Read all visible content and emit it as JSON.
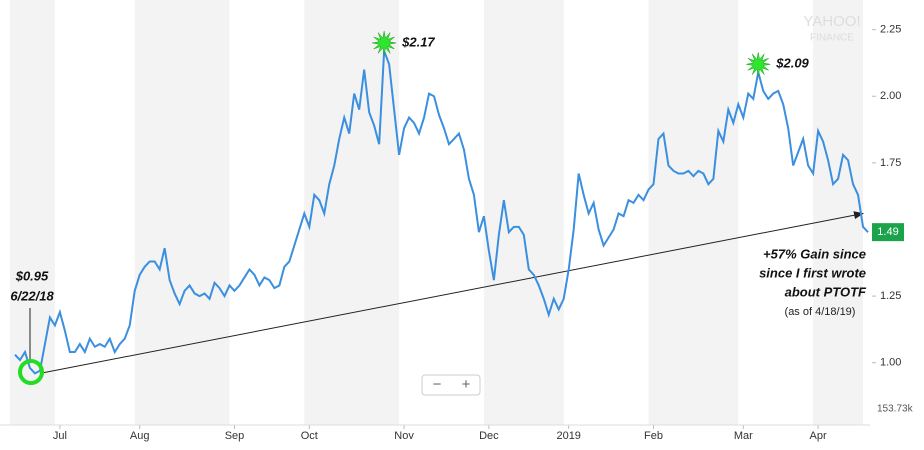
{
  "chart_data": {
    "type": "line",
    "watermark": [
      "YAHOO!",
      "FINANCE"
    ],
    "series": [
      {
        "name": "PTOTF",
        "color": "#3b8fe0",
        "values": [
          1.03,
          1.01,
          1.04,
          0.98,
          0.96,
          0.97,
          1.07,
          1.17,
          1.14,
          1.19,
          1.12,
          1.04,
          1.04,
          1.07,
          1.04,
          1.09,
          1.06,
          1.07,
          1.06,
          1.09,
          1.04,
          1.07,
          1.09,
          1.14,
          1.27,
          1.33,
          1.36,
          1.38,
          1.38,
          1.35,
          1.43,
          1.31,
          1.26,
          1.22,
          1.27,
          1.29,
          1.26,
          1.25,
          1.26,
          1.24,
          1.3,
          1.28,
          1.25,
          1.29,
          1.27,
          1.29,
          1.32,
          1.35,
          1.33,
          1.29,
          1.32,
          1.31,
          1.28,
          1.29,
          1.36,
          1.38,
          1.44,
          1.5,
          1.56,
          1.51,
          1.63,
          1.61,
          1.56,
          1.67,
          1.74,
          1.84,
          1.92,
          1.86,
          2.01,
          1.95,
          2.1,
          1.94,
          1.89,
          1.82,
          2.17,
          2.12,
          1.95,
          1.78,
          1.88,
          1.92,
          1.9,
          1.86,
          1.92,
          2.01,
          2.0,
          1.93,
          1.88,
          1.82,
          1.84,
          1.86,
          1.8,
          1.69,
          1.63,
          1.49,
          1.55,
          1.42,
          1.31,
          1.48,
          1.61,
          1.49,
          1.51,
          1.51,
          1.48,
          1.35,
          1.33,
          1.29,
          1.24,
          1.18,
          1.24,
          1.2,
          1.24,
          1.35,
          1.5,
          1.71,
          1.63,
          1.56,
          1.6,
          1.5,
          1.44,
          1.47,
          1.5,
          1.56,
          1.55,
          1.61,
          1.6,
          1.63,
          1.61,
          1.65,
          1.67,
          1.84,
          1.86,
          1.74,
          1.72,
          1.71,
          1.71,
          1.72,
          1.7,
          1.72,
          1.71,
          1.67,
          1.69,
          1.87,
          1.83,
          1.95,
          1.9,
          1.97,
          1.92,
          2.01,
          1.99,
          2.09,
          2.02,
          1.99,
          2.01,
          2.02,
          1.97,
          1.88,
          1.74,
          1.79,
          1.84,
          1.74,
          1.71,
          1.87,
          1.83,
          1.76,
          1.67,
          1.69,
          1.78,
          1.76,
          1.67,
          1.63,
          1.51,
          1.49
        ]
      }
    ],
    "xlim": [
      0,
      171
    ],
    "xticks": [
      {
        "value": 9,
        "label": "Jul"
      },
      {
        "value": 25,
        "label": "Aug"
      },
      {
        "value": 44,
        "label": "Sep"
      },
      {
        "value": 59,
        "label": "Oct"
      },
      {
        "value": 78,
        "label": "Nov"
      },
      {
        "value": 95,
        "label": "Dec"
      },
      {
        "value": 111,
        "label": "2019"
      },
      {
        "value": 128,
        "label": "Feb"
      },
      {
        "value": 146,
        "label": "Mar"
      },
      {
        "value": 161,
        "label": "Apr"
      }
    ],
    "ylim": [
      0.8,
      2.35
    ],
    "yticks": [
      {
        "value": 1,
        "label": "1.00"
      },
      1.25,
      {
        "value": 1.5,
        "label": "1.50"
      },
      1.75,
      {
        "value": 2,
        "label": "2.00"
      },
      2.25
    ],
    "last_price": 1.49,
    "volume_label": "153.73k",
    "annotations": {
      "peak1": "$2.17",
      "peak2": "$2.09",
      "start": [
        "$0.95",
        "6/22/18"
      ],
      "gain": [
        "+57% Gain since",
        "since I first wrote",
        "about PTOTF"
      ],
      "asof": "(as of 4/18/19)"
    },
    "zoom": [
      "−",
      "+"
    ]
  }
}
